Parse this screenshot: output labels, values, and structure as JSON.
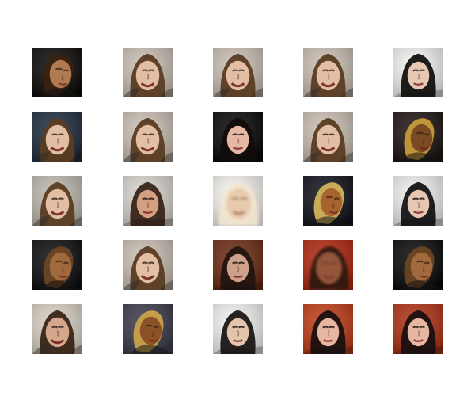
{
  "figure": {
    "rows": 5,
    "cols": 5,
    "background": "#ffffff",
    "samples": [
      {
        "bg": "#0a0806",
        "hair": "#3a2210",
        "skin": "#b07a52",
        "pose": "profile"
      },
      {
        "bg": "#c9bfb2",
        "hair": "#5a3c22",
        "skin": "#e2bfa4",
        "pose": "smile"
      },
      {
        "bg": "#c9bfb2",
        "hair": "#5a3c22",
        "skin": "#e2bfa4",
        "pose": "smile"
      },
      {
        "bg": "#c9bfb2",
        "hair": "#5a3c22",
        "skin": "#e2bfa4",
        "pose": "smile"
      },
      {
        "bg": "#f2f2f0",
        "hair": "#121110",
        "skin": "#e7c9b3",
        "pose": "front"
      },
      {
        "bg": "#1d2a3c",
        "hair": "#5a3c22",
        "skin": "#e2bfa4",
        "pose": "smile"
      },
      {
        "bg": "#c9bfb2",
        "hair": "#5a3c22",
        "skin": "#e2bfa4",
        "pose": "smile"
      },
      {
        "bg": "#070606",
        "hair": "#120c0a",
        "skin": "#e6b8a6",
        "pose": "front"
      },
      {
        "bg": "#c9bfb2",
        "hair": "#5a3c22",
        "skin": "#e2bfa4",
        "pose": "smile"
      },
      {
        "bg": "#1a1210",
        "hair": "#c79a3a",
        "skin": "#7a4a22",
        "pose": "profile"
      },
      {
        "bg": "#bdb7ad",
        "hair": "#5a3c22",
        "skin": "#e2bfa4",
        "pose": "smile"
      },
      {
        "bg": "#d8d3cc",
        "hair": "#3a2418",
        "skin": "#d3a182",
        "pose": "front"
      },
      {
        "bg": "#f6f3ee",
        "hair": "#f2e6cf",
        "skin": "#e8c8aa",
        "pose": "blur"
      },
      {
        "bg": "#10101a",
        "hair": "#d1b35a",
        "skin": "#a8642e",
        "pose": "profile"
      },
      {
        "bg": "#f0efee",
        "hair": "#141316",
        "skin": "#e6c8b2",
        "pose": "front"
      },
      {
        "bg": "#0c0b0d",
        "hair": "#6b4524",
        "skin": "#a06a3d",
        "pose": "profile"
      },
      {
        "bg": "#c9bfb2",
        "hair": "#5a3c22",
        "skin": "#e2bfa4",
        "pose": "smile"
      },
      {
        "bg": "#6a2a10",
        "hair": "#241410",
        "skin": "#cfa08a",
        "pose": "front"
      },
      {
        "bg": "#b0260d",
        "hair": "#2a1710",
        "skin": "#9a5a3d",
        "pose": "blur"
      },
      {
        "bg": "#070707",
        "hair": "#6b4524",
        "skin": "#a06a3d",
        "pose": "profile"
      },
      {
        "bg": "#d9d0c4",
        "hair": "#3a2418",
        "skin": "#d5a78c",
        "pose": "smile"
      },
      {
        "bg": "#3a3a4a",
        "hair": "#caa24a",
        "skin": "#8c5227",
        "pose": "profile"
      },
      {
        "bg": "#f2f2f0",
        "hair": "#1b1716",
        "skin": "#e5c4ad",
        "pose": "front"
      },
      {
        "bg": "#c03a16",
        "hair": "#1a1010",
        "skin": "#e5b6a1",
        "pose": "front"
      },
      {
        "bg": "#b03013",
        "hair": "#1a1010",
        "skin": "#e5b6a1",
        "pose": "front"
      }
    ]
  }
}
